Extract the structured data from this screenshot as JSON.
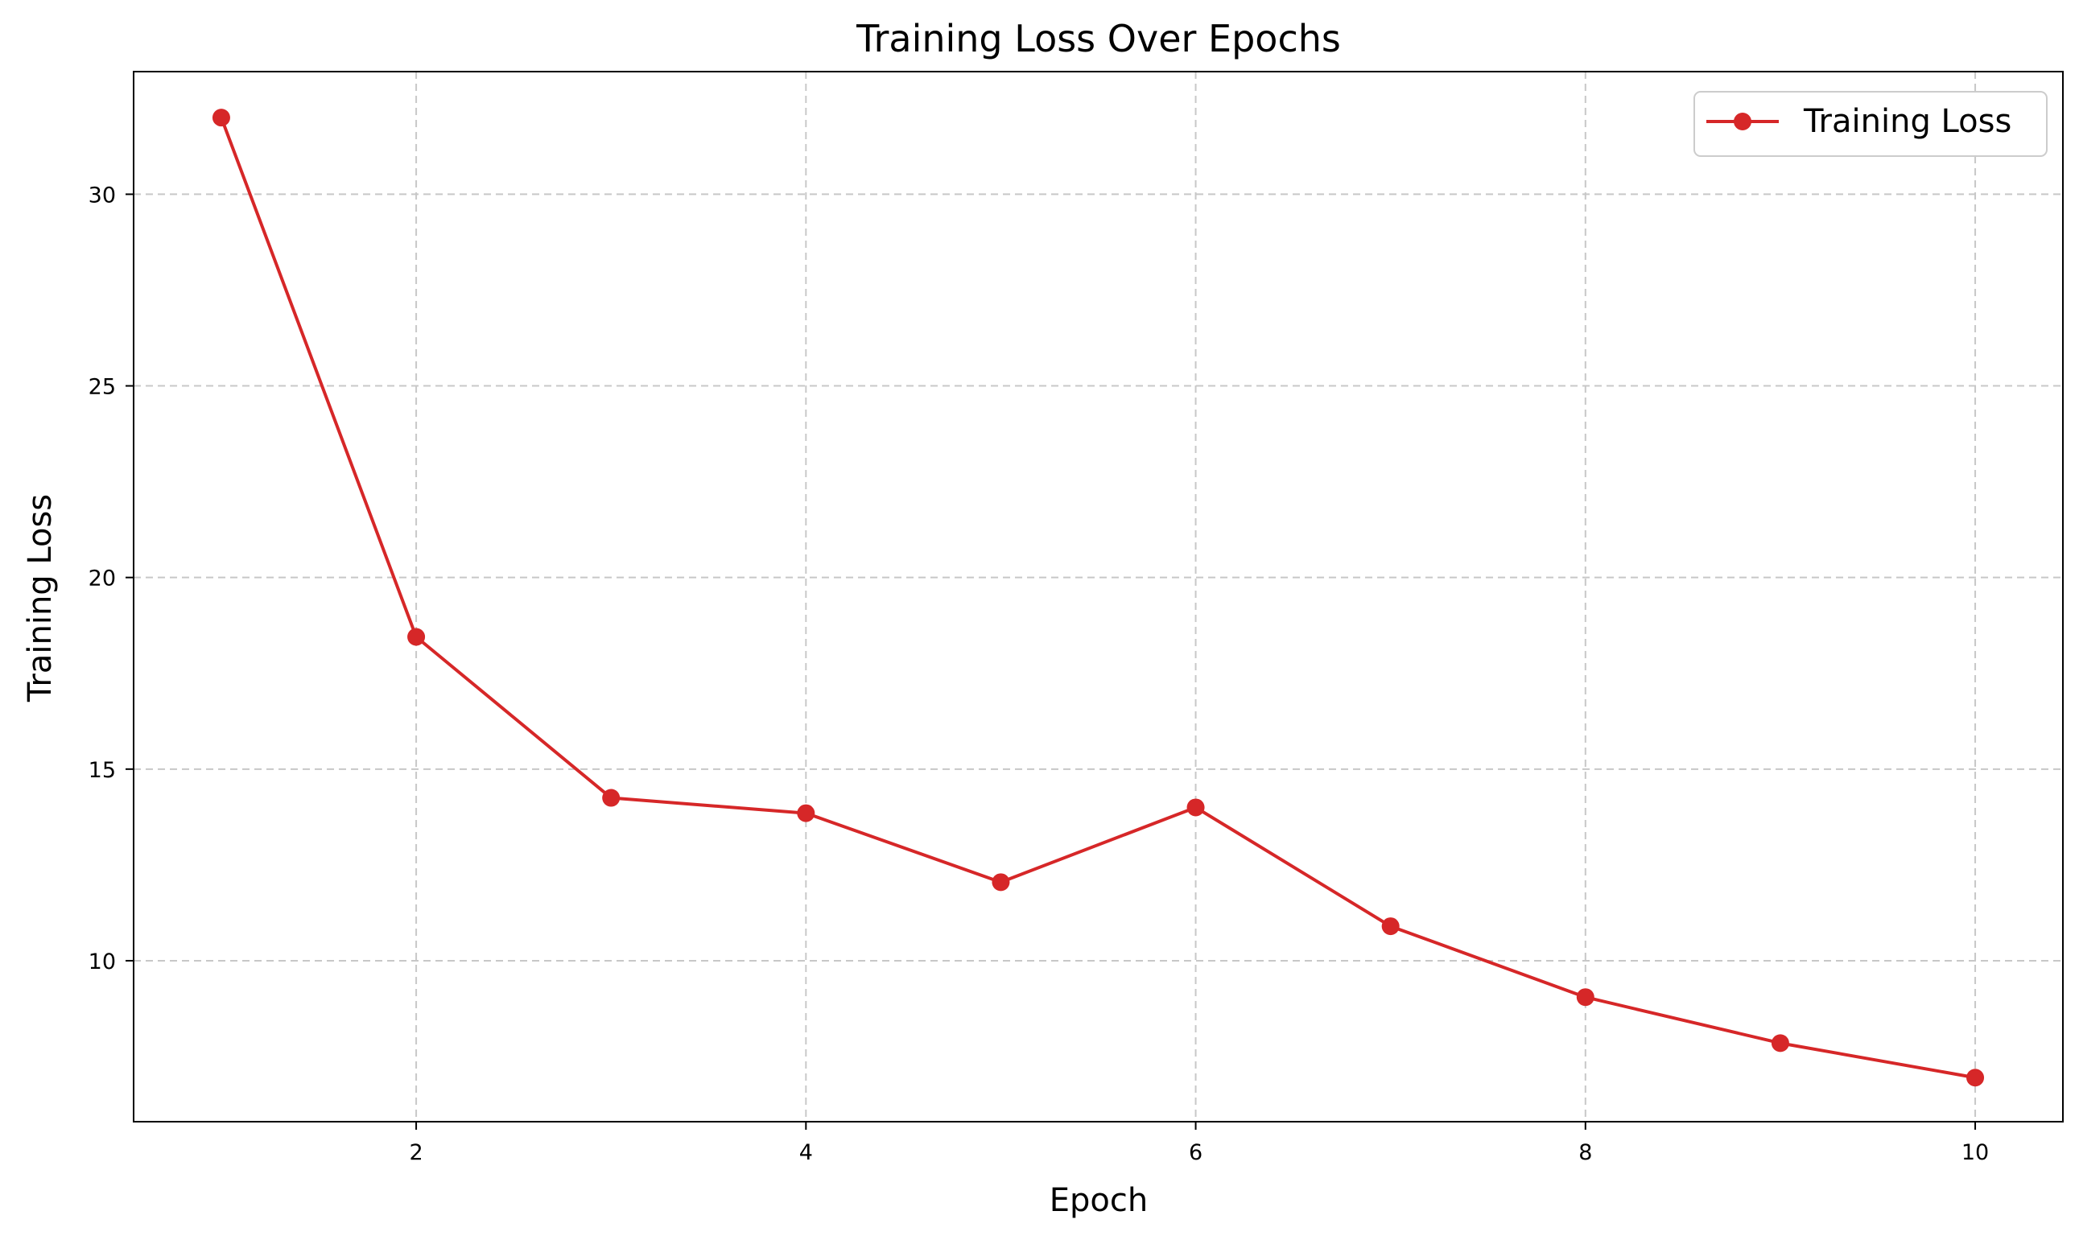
{
  "chart_data": {
    "type": "line",
    "title": "Training Loss Over Epochs",
    "xlabel": "Epoch",
    "ylabel": "Training Loss",
    "x": [
      1,
      2,
      3,
      4,
      5,
      6,
      7,
      8,
      9,
      10
    ],
    "series": [
      {
        "name": "Training Loss",
        "values": [
          32.0,
          18.45,
          14.25,
          13.85,
          12.05,
          14.0,
          10.9,
          9.05,
          7.85,
          6.95
        ],
        "color": "#d62728",
        "marker": "circle"
      }
    ],
    "xlim": [
      0.55,
      10.45
    ],
    "ylim": [
      5.8,
      33.2
    ],
    "xticks": [
      2,
      4,
      6,
      8,
      10
    ],
    "yticks": [
      10,
      15,
      20,
      25,
      30
    ],
    "grid": true,
    "grid_style": "dashed",
    "legend_position": "top-right"
  }
}
